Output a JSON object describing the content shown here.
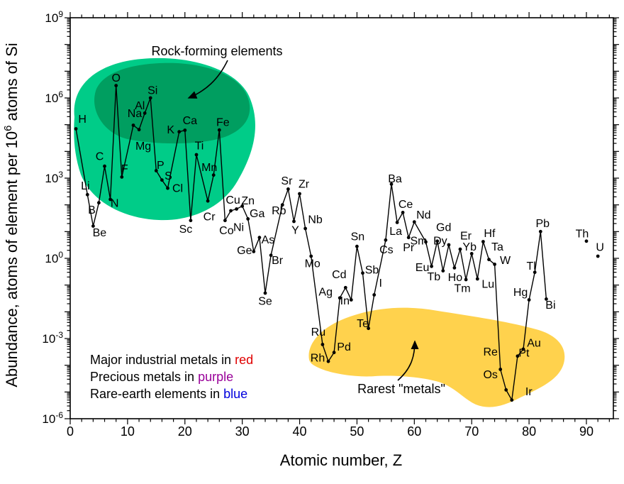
{
  "chart_data": {
    "type": "line",
    "title": "",
    "xlabel": "Atomic number, Z",
    "ylabel_prefix": "Abundance, atoms of element per 10",
    "ylabel_exponent": "6",
    "ylabel_suffix": " atoms of Si",
    "x_range": [
      0,
      94.7
    ],
    "y_log_range": [
      -6,
      9
    ],
    "x_ticks": [
      0,
      10,
      20,
      30,
      40,
      50,
      60,
      70,
      80,
      90
    ],
    "y_tick_exponents": [
      "9",
      "6",
      "3",
      "0",
      "-3",
      "-6"
    ],
    "grid": false,
    "legend_position": "bottom-left",
    "category_colors": {
      "industrial": "#E00000",
      "precious": "#990099",
      "rare_earth": "#0000DD",
      "other": "#000000"
    },
    "regions": [
      {
        "name": "rock-forming-outer",
        "color": "#00CC88"
      },
      {
        "name": "rock-forming-inner",
        "color": "#009E60"
      },
      {
        "name": "rarest-metals",
        "color": "#FFD24D"
      }
    ],
    "annotations": [
      {
        "id": "rock-forming",
        "text": "Rock-forming elements"
      },
      {
        "id": "rarest-metals",
        "text": "Rarest \"metals\""
      }
    ],
    "legend": [
      {
        "prefix": "Major industrial metals in ",
        "word": "red",
        "category": "industrial"
      },
      {
        "prefix": "Precious metals in ",
        "word": "purple",
        "category": "precious"
      },
      {
        "prefix": "Rare-earth elements in ",
        "word": "blue",
        "category": "rare_earth"
      }
    ],
    "series": [
      {
        "name": "abundance-per-million-atoms-Si",
        "points": [
          {
            "symbol": "H",
            "z": 1,
            "abundance": 70000.0,
            "category": "other",
            "dx": 9,
            "dy": -14
          },
          {
            "symbol": "Li",
            "z": 3,
            "abundance": 240.0,
            "category": "other",
            "dx": -3,
            "dy": -13
          },
          {
            "symbol": "Be",
            "z": 4,
            "abundance": 16.0,
            "category": "other",
            "dx": 9,
            "dy": 9
          },
          {
            "symbol": "B",
            "z": 5,
            "abundance": 120.0,
            "category": "other",
            "dx": -10,
            "dy": 10
          },
          {
            "symbol": "C",
            "z": 6,
            "abundance": 2800.0,
            "category": "other",
            "dx": -7,
            "dy": -14
          },
          {
            "symbol": "N",
            "z": 7,
            "abundance": 160.0,
            "category": "other",
            "dx": 6,
            "dy": 5
          },
          {
            "symbol": "O",
            "z": 8,
            "abundance": 2900000.0,
            "category": "other",
            "dx": 0,
            "dy": -11
          },
          {
            "symbol": "F",
            "z": 9,
            "abundance": 1100.0,
            "category": "other",
            "dx": 4,
            "dy": -12
          },
          {
            "symbol": "Na",
            "z": 11,
            "abundance": 95000.0,
            "category": "other",
            "dx": 2,
            "dy": -17
          },
          {
            "symbol": "Mg",
            "z": 12,
            "abundance": 65000.0,
            "category": "industrial",
            "dx": 6,
            "dy": 23
          },
          {
            "symbol": "Al",
            "z": 13,
            "abundance": 270000.0,
            "category": "industrial",
            "dx": -7,
            "dy": -11
          },
          {
            "symbol": "Si",
            "z": 14,
            "abundance": 1000000.0,
            "category": "other",
            "dx": 3,
            "dy": -11
          },
          {
            "symbol": "P",
            "z": 15,
            "abundance": 1900.0,
            "category": "other",
            "dx": 6,
            "dy": -8
          },
          {
            "symbol": "S",
            "z": 16,
            "abundance": 850.0,
            "category": "other",
            "dx": 9,
            "dy": -6
          },
          {
            "symbol": "Cl",
            "z": 17,
            "abundance": 420.0,
            "category": "other",
            "dx": 14,
            "dy": 0
          },
          {
            "symbol": "K",
            "z": 19,
            "abundance": 54000.0,
            "category": "other",
            "dx": -12,
            "dy": -3
          },
          {
            "symbol": "Ca",
            "z": 20,
            "abundance": 62000.0,
            "category": "other",
            "dx": 7,
            "dy": -14
          },
          {
            "symbol": "Sc",
            "z": 21,
            "abundance": 26.0,
            "category": "rare_earth",
            "dx": -7,
            "dy": 12
          },
          {
            "symbol": "Ti",
            "z": 22,
            "abundance": 7500.0,
            "category": "industrial",
            "dx": 4,
            "dy": -13
          },
          {
            "symbol": "Cr",
            "z": 24,
            "abundance": 140.0,
            "category": "industrial",
            "dx": 2,
            "dy": 22
          },
          {
            "symbol": "Mn",
            "z": 25,
            "abundance": 1300.0,
            "category": "industrial",
            "dx": -6,
            "dy": -11
          },
          {
            "symbol": "Fe",
            "z": 26,
            "abundance": 63000.0,
            "category": "industrial",
            "dx": 5,
            "dy": -11
          },
          {
            "symbol": "Co",
            "z": 27,
            "abundance": 26.0,
            "category": "other",
            "dx": 2,
            "dy": 14
          },
          {
            "symbol": "Ni",
            "z": 28,
            "abundance": 60.0,
            "category": "industrial",
            "dx": 11,
            "dy": 23
          },
          {
            "symbol": "Cu",
            "z": 29,
            "abundance": 70.0,
            "category": "industrial",
            "dx": -5,
            "dy": -13
          },
          {
            "symbol": "Zn",
            "z": 30,
            "abundance": 90.0,
            "category": "industrial",
            "dx": 8,
            "dy": -8
          },
          {
            "symbol": "Ga",
            "z": 31,
            "abundance": 30.0,
            "category": "other",
            "dx": 13,
            "dy": -8
          },
          {
            "symbol": "Ge",
            "z": 32,
            "abundance": 1.8,
            "category": "other",
            "dx": -13,
            "dy": -2
          },
          {
            "symbol": "As",
            "z": 33,
            "abundance": 6.0,
            "category": "other",
            "dx": 12,
            "dy": 3
          },
          {
            "symbol": "Se",
            "z": 34,
            "abundance": 0.05,
            "category": "other",
            "dx": 0,
            "dy": 11
          },
          {
            "symbol": "Br",
            "z": 35,
            "abundance": 1.3,
            "category": "other",
            "dx": 9,
            "dy": 7
          },
          {
            "symbol": "Rb",
            "z": 37,
            "abundance": 100.0,
            "category": "other",
            "dx": -5,
            "dy": 8
          },
          {
            "symbol": "Sr",
            "z": 38,
            "abundance": 390.0,
            "category": "other",
            "dx": -2,
            "dy": -12
          },
          {
            "symbol": "Y",
            "z": 39,
            "abundance": 24.0,
            "category": "rare_earth",
            "dx": 2,
            "dy": 12
          },
          {
            "symbol": "Zr",
            "z": 40,
            "abundance": 260.0,
            "category": "other",
            "dx": 6,
            "dy": -14
          },
          {
            "symbol": "Nb",
            "z": 41,
            "abundance": 13.0,
            "category": "other",
            "dx": 14,
            "dy": -13
          },
          {
            "symbol": "Mo",
            "z": 42,
            "abundance": 1.2,
            "category": "industrial",
            "dx": 2,
            "dy": 10
          },
          {
            "symbol": "Ru",
            "z": 44,
            "abundance": 0.0006,
            "category": "precious",
            "dx": -6,
            "dy": -18
          },
          {
            "symbol": "Rh",
            "z": 45,
            "abundance": 0.00014,
            "category": "precious",
            "dx": -15,
            "dy": -5
          },
          {
            "symbol": "Pd",
            "z": 46,
            "abundance": 0.0003,
            "category": "precious",
            "dx": 14,
            "dy": -8
          },
          {
            "symbol": "Ag",
            "z": 47,
            "abundance": 0.033,
            "category": "precious",
            "dx": -20,
            "dy": -9
          },
          {
            "symbol": "Cd",
            "z": 48,
            "abundance": 0.08,
            "category": "other",
            "dx": -9,
            "dy": -19
          },
          {
            "symbol": "In",
            "z": 49,
            "abundance": 0.028,
            "category": "other",
            "dx": -9,
            "dy": 1
          },
          {
            "symbol": "Sn",
            "z": 50,
            "abundance": 2.8,
            "category": "industrial",
            "dx": 1,
            "dy": -14
          },
          {
            "symbol": "Sb",
            "z": 51,
            "abundance": 0.28,
            "category": "other",
            "dx": 13,
            "dy": -5
          },
          {
            "symbol": "Te",
            "z": 52,
            "abundance": 0.0024,
            "category": "other",
            "dx": -8,
            "dy": -7
          },
          {
            "symbol": "I",
            "z": 53,
            "abundance": 0.043,
            "category": "other",
            "dx": 9,
            "dy": -17
          },
          {
            "symbol": "Cs",
            "z": 55,
            "abundance": 4.8,
            "category": "other",
            "dx": 1,
            "dy": 13
          },
          {
            "symbol": "Ba",
            "z": 56,
            "abundance": 600.0,
            "category": "other",
            "dx": 5,
            "dy": -8
          },
          {
            "symbol": "La",
            "z": 57,
            "abundance": 22.0,
            "category": "rare_earth",
            "dx": -2,
            "dy": 12
          },
          {
            "symbol": "Ce",
            "z": 58,
            "abundance": 52.0,
            "category": "rare_earth",
            "dx": 4,
            "dy": -12
          },
          {
            "symbol": "Pr",
            "z": 59,
            "abundance": 6.0,
            "category": "rare_earth",
            "dx": 0,
            "dy": 14
          },
          {
            "symbol": "Nd",
            "z": 60,
            "abundance": 23.0,
            "category": "rare_earth",
            "dx": 13,
            "dy": -10
          },
          {
            "symbol": "Sm",
            "z": 62,
            "abundance": 4.1,
            "category": "rare_earth",
            "dx": -10,
            "dy": -2
          },
          {
            "symbol": "Eu",
            "z": 63,
            "abundance": 0.5,
            "category": "rare_earth",
            "dx": -13,
            "dy": 1
          },
          {
            "symbol": "Gd",
            "z": 64,
            "abundance": 4.4,
            "category": "rare_earth",
            "dx": 9,
            "dy": -20
          },
          {
            "symbol": "Tb",
            "z": 65,
            "abundance": 0.34,
            "category": "rare_earth",
            "dx": -13,
            "dy": 8
          },
          {
            "symbol": "Dy",
            "z": 66,
            "abundance": 3.2,
            "category": "rare_earth",
            "dx": -12,
            "dy": -6
          },
          {
            "symbol": "Ho",
            "z": 67,
            "abundance": 0.44,
            "category": "rare_earth",
            "dx": 1,
            "dy": 13
          },
          {
            "symbol": "Er",
            "z": 68,
            "abundance": 2.2,
            "category": "rare_earth",
            "dx": 8,
            "dy": -19
          },
          {
            "symbol": "Tm",
            "z": 69,
            "abundance": 0.16,
            "category": "rare_earth",
            "dx": -5,
            "dy": 12
          },
          {
            "symbol": "Yb",
            "z": 70,
            "abundance": 1.5,
            "category": "rare_earth",
            "dx": -3,
            "dy": -10
          },
          {
            "symbol": "Lu",
            "z": 71,
            "abundance": 0.17,
            "category": "rare_earth",
            "dx": 15,
            "dy": 7
          },
          {
            "symbol": "Hf",
            "z": 72,
            "abundance": 4.2,
            "category": "other",
            "dx": 9,
            "dy": -12
          },
          {
            "symbol": "Ta",
            "z": 73,
            "abundance": 0.9,
            "category": "other",
            "dx": 12,
            "dy": -18
          },
          {
            "symbol": "W",
            "z": 74,
            "abundance": 0.6,
            "category": "industrial",
            "dx": 15,
            "dy": -6
          },
          {
            "symbol": "Re",
            "z": 75,
            "abundance": 7e-05,
            "category": "other",
            "dx": -14,
            "dy": -25
          },
          {
            "symbol": "Os",
            "z": 76,
            "abundance": 1.2e-05,
            "category": "precious",
            "dx": -22,
            "dy": -22
          },
          {
            "symbol": "Ir",
            "z": 77,
            "abundance": 5e-06,
            "category": "precious",
            "dx": 24,
            "dy": -12
          },
          {
            "symbol": "Pt",
            "z": 78,
            "abundance": 0.00022,
            "category": "precious",
            "dx": 9,
            "dy": -5
          },
          {
            "symbol": "Au",
            "z": 79,
            "abundance": 0.0004,
            "category": "precious",
            "dx": 15,
            "dy": -9
          },
          {
            "symbol": "Hg",
            "z": 80,
            "abundance": 0.028,
            "category": "other",
            "dx": -12,
            "dy": -11
          },
          {
            "symbol": "Tl",
            "z": 81,
            "abundance": 0.3,
            "category": "other",
            "dx": -5,
            "dy": -9
          },
          {
            "symbol": "Pb",
            "z": 82,
            "abundance": 10.0,
            "category": "industrial",
            "dx": 3,
            "dy": -12
          },
          {
            "symbol": "Bi",
            "z": 83,
            "abundance": 0.03,
            "category": "other",
            "dx": 6,
            "dy": 8
          },
          {
            "symbol": "Th",
            "z": 90,
            "abundance": 4.4,
            "category": "other",
            "dx": -6,
            "dy": -11,
            "connect": false
          },
          {
            "symbol": "U",
            "z": 92,
            "abundance": 1.2,
            "category": "other",
            "dx": 3,
            "dy": -13,
            "connect": false
          }
        ]
      }
    ]
  }
}
